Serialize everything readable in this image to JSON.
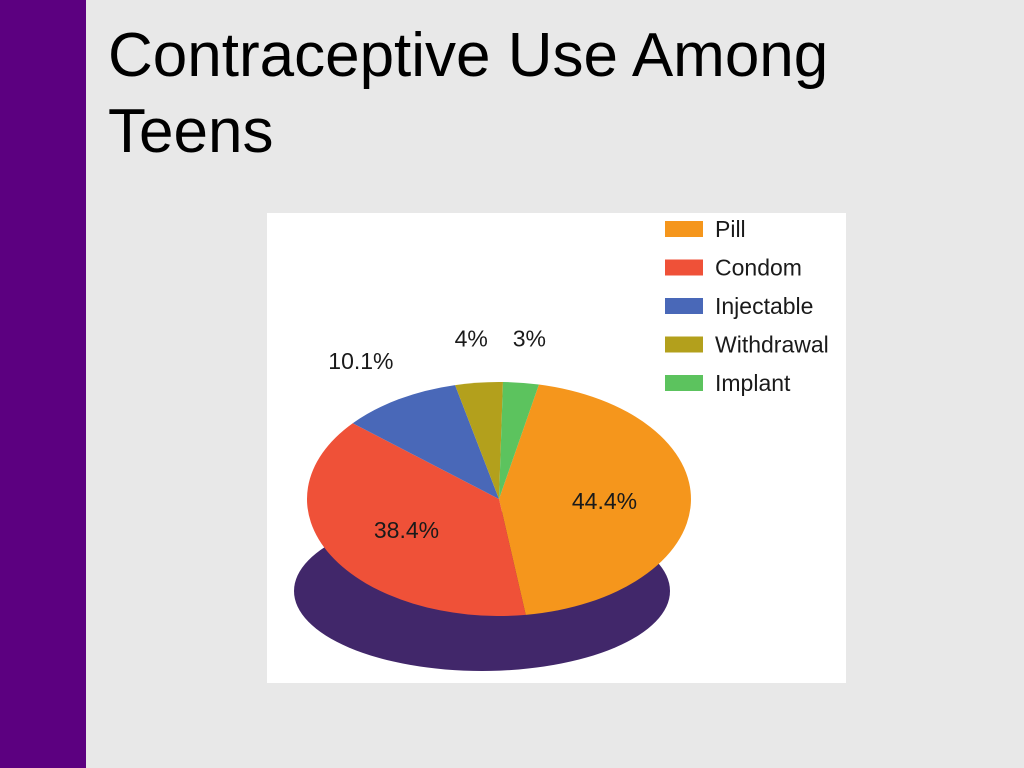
{
  "slide": {
    "title": "Contraceptive Use Among Teens"
  },
  "colors": {
    "sidebar": "#5c0080",
    "background": "#e8e8e8",
    "pie_shadow": "#41276a"
  },
  "chart_data": {
    "type": "pie",
    "title": "",
    "legend_position": "top-right",
    "slices": [
      {
        "name": "Pill",
        "value": 44.4,
        "label": "44.4%",
        "color": "#f5961c"
      },
      {
        "name": "Condom",
        "value": 38.4,
        "label": "38.4%",
        "color": "#ef5138"
      },
      {
        "name": "Injectable",
        "value": 10.1,
        "label": "10.1%",
        "color": "#4968b8"
      },
      {
        "name": "Withdrawal",
        "value": 4,
        "label": "4%",
        "color": "#b3a01c"
      },
      {
        "name": "Implant",
        "value": 3,
        "label": "3%",
        "color": "#5cc35e"
      }
    ]
  }
}
